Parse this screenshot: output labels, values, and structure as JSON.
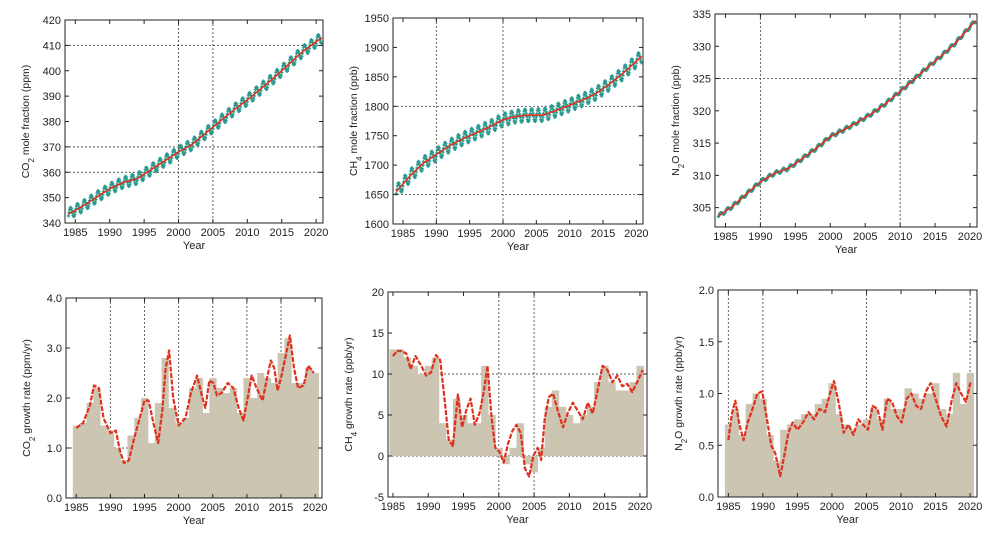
{
  "colors": {
    "co2_points": "#2a9a8f",
    "fit_line": "#e0301e",
    "bar_fill": "#cbc5b1",
    "axis": "#222222",
    "grid": "#555555"
  },
  "chart_data": [
    {
      "id": "co2_mole",
      "type": "scatter",
      "xlabel": "Year",
      "ylabel": "CO2 mole fraction (ppm)",
      "ylabel_parts": [
        "CO",
        "2",
        " mole fraction (ppm)"
      ],
      "xlim": [
        1983.5,
        2021
      ],
      "ylim": [
        340,
        420
      ],
      "xticks": [
        1985,
        1990,
        1995,
        2000,
        2005,
        2010,
        2015,
        2020
      ],
      "yticks": [
        340,
        350,
        360,
        370,
        380,
        390,
        400,
        410,
        420
      ],
      "vgrid": [
        2000,
        2005
      ],
      "hgrid": [
        360,
        370,
        410
      ],
      "seasonal_amplitude": 2.2,
      "series": [
        {
          "style": "points",
          "values": "monthly seasonal data"
        },
        {
          "style": "line",
          "x": [
            1984,
            1986,
            1988,
            1990,
            1992,
            1994,
            1996,
            1998,
            2000,
            2002,
            2004,
            2006,
            2008,
            2010,
            2012,
            2014,
            2016,
            2018,
            2020.8
          ],
          "y": [
            343.5,
            346.5,
            350,
            353.5,
            356,
            357.5,
            361,
            364.5,
            368,
            371,
            375.5,
            380,
            384.5,
            388.5,
            393,
            397.5,
            402.5,
            407.5,
            413
          ]
        }
      ]
    },
    {
      "id": "ch4_mole",
      "type": "scatter",
      "xlabel": "Year",
      "ylabel": "CH4 mole fraction (ppb)",
      "ylabel_parts": [
        "CH",
        "4",
        " mole fraction (ppb)"
      ],
      "xlim": [
        1983.5,
        2021
      ],
      "ylim": [
        1600,
        1950
      ],
      "xticks": [
        1985,
        1990,
        1995,
        2000,
        2005,
        2010,
        2015,
        2020
      ],
      "yticks": [
        1600,
        1650,
        1700,
        1750,
        1800,
        1850,
        1900,
        1950
      ],
      "vgrid": [
        1990,
        2000
      ],
      "hgrid": [
        1650,
        1800
      ],
      "seasonal_amplitude": 11,
      "series": [
        {
          "style": "points",
          "values": "monthly seasonal data"
        },
        {
          "style": "line",
          "x": [
            1984,
            1986,
            1988,
            1990,
            1992,
            1994,
            1996,
            1998,
            2000,
            2002,
            2004,
            2006,
            2008,
            2010,
            2012,
            2014,
            2016,
            2018,
            2020.8
          ],
          "y": [
            1655,
            1681,
            1703,
            1718,
            1733,
            1745,
            1755,
            1765,
            1777,
            1783,
            1785,
            1785,
            1793,
            1802,
            1811,
            1822,
            1838,
            1856,
            1885
          ]
        }
      ]
    },
    {
      "id": "n2o_mole",
      "type": "scatter",
      "xlabel": "Year",
      "ylabel": "N2O mole fraction (ppb)",
      "ylabel_parts": [
        "N",
        "2",
        "O mole fraction (ppb)"
      ],
      "xlim": [
        1983.5,
        2021
      ],
      "ylim": [
        302,
        335
      ],
      "xticks": [
        1985,
        1990,
        1995,
        2000,
        2005,
        2010,
        2015,
        2020
      ],
      "yticks": [
        305,
        310,
        315,
        320,
        325,
        330,
        335
      ],
      "vgrid": [
        1990,
        2010
      ],
      "hgrid": [
        325
      ],
      "seasonal_amplitude": 0.3,
      "series": [
        {
          "style": "points",
          "values": "monthly seasonal data"
        },
        {
          "style": "line",
          "x": [
            1984,
            1986,
            1988,
            1990,
            1992,
            1994,
            1996,
            1998,
            2000,
            2002,
            2004,
            2006,
            2008,
            2010,
            2012,
            2014,
            2016,
            2018,
            2020.8
          ],
          "y": [
            303.7,
            305.2,
            307.1,
            309,
            310.3,
            311.1,
            312.6,
            314.2,
            316,
            317.1,
            318.3,
            319.6,
            321.2,
            323,
            324.9,
            326.8,
            328.6,
            330.6,
            334
          ]
        }
      ]
    },
    {
      "id": "co2_growth",
      "type": "bar",
      "xlabel": "Year",
      "ylabel": "CO2 growth rate (ppm/yr)",
      "ylabel_parts": [
        "CO",
        "2",
        " growth rate (ppm/yr)"
      ],
      "xlim": [
        1983.5,
        2021
      ],
      "ylim": [
        0,
        4
      ],
      "xticks": [
        1985,
        1990,
        1995,
        2000,
        2005,
        2010,
        2015,
        2020
      ],
      "yticks": [
        0,
        1,
        2,
        3,
        4
      ],
      "ytick_labels": [
        "0.0",
        "1.0",
        "2.0",
        "3.0",
        "4.0"
      ],
      "vgrid": [
        1990,
        1995,
        2000,
        2005,
        2010,
        2015
      ],
      "hgrid": [
        1.0
      ],
      "years": [
        1985,
        1986,
        1987,
        1988,
        1989,
        1990,
        1991,
        1992,
        1993,
        1994,
        1995,
        1996,
        1997,
        1998,
        1999,
        2000,
        2001,
        2002,
        2003,
        2004,
        2005,
        2006,
        2007,
        2008,
        2009,
        2010,
        2011,
        2012,
        2013,
        2014,
        2015,
        2016,
        2017,
        2018,
        2019,
        2020
      ],
      "values": [
        1.45,
        1.5,
        1.9,
        2.2,
        1.45,
        1.35,
        1.0,
        0.75,
        1.25,
        1.6,
        2.0,
        1.1,
        1.9,
        2.8,
        1.8,
        1.5,
        1.6,
        2.2,
        2.4,
        1.7,
        2.4,
        2.2,
        2.1,
        2.2,
        1.7,
        2.4,
        2.0,
        2.5,
        2.4,
        2.3,
        2.9,
        3.2,
        2.3,
        2.3,
        2.6,
        2.5
      ],
      "smooth": {
        "x": [
          1985,
          1986,
          1987,
          1987.6,
          1988.3,
          1989,
          1990,
          1990.8,
          1991.4,
          1992,
          1992.7,
          1993.4,
          1994.3,
          1995,
          1995.6,
          1996.3,
          1997,
          1997.6,
          1998.1,
          1998.6,
          1999.2,
          2000,
          2001,
          2001.8,
          2002.7,
          2003.3,
          2003.9,
          2004.5,
          2005.1,
          2005.6,
          2006.3,
          2007.2,
          2008,
          2008.8,
          2009.5,
          2010.1,
          2010.7,
          2011.4,
          2012.3,
          2012.8,
          2013.5,
          2014,
          2014.5,
          2015,
          2015.7,
          2016.3,
          2016.9,
          2017.5,
          2018.3,
          2019,
          2019.8
        ],
        "y": [
          1.4,
          1.5,
          1.85,
          2.25,
          2.2,
          1.6,
          1.3,
          1.35,
          0.95,
          0.7,
          0.75,
          1.15,
          1.6,
          1.95,
          1.95,
          1.5,
          1.1,
          1.75,
          2.6,
          2.95,
          2.0,
          1.45,
          1.6,
          2.1,
          2.45,
          2.1,
          1.8,
          2.35,
          2.3,
          2.05,
          2.1,
          2.3,
          2.2,
          1.8,
          1.55,
          2.0,
          2.45,
          2.2,
          1.95,
          2.3,
          2.75,
          2.6,
          2.15,
          2.4,
          2.85,
          3.25,
          2.6,
          2.2,
          2.25,
          2.65,
          2.5
        ]
      }
    },
    {
      "id": "ch4_growth",
      "type": "bar",
      "xlabel": "Year",
      "ylabel": "CH4 growth rate (ppb/yr)",
      "ylabel_parts": [
        "CH",
        "4",
        " growth rate (ppb/yr)"
      ],
      "xlim": [
        1984.3,
        2021
      ],
      "ylim": [
        -5,
        20
      ],
      "xticks": [
        1985,
        1990,
        1995,
        2000,
        2005,
        2010,
        2015,
        2020
      ],
      "yticks": [
        -5,
        0,
        5,
        10,
        15,
        20
      ],
      "vgrid": [
        2000,
        2005
      ],
      "hgrid": [
        0,
        10
      ],
      "years": [
        1985,
        1986,
        1987,
        1988,
        1989,
        1990,
        1991,
        1992,
        1993,
        1994,
        1995,
        1996,
        1997,
        1998,
        1999,
        2000,
        2001,
        2002,
        2003,
        2004,
        2005,
        2006,
        2007,
        2008,
        2009,
        2010,
        2011,
        2012,
        2013,
        2014,
        2015,
        2016,
        2017,
        2018,
        2019,
        2020
      ],
      "values": [
        13,
        13,
        12,
        11,
        10,
        11,
        12,
        4,
        2,
        7,
        5,
        4,
        4,
        11,
        5,
        1,
        -1,
        1,
        4,
        -1,
        -2,
        1,
        6,
        8,
        6,
        5,
        4,
        5,
        6,
        9,
        11,
        9,
        8,
        8,
        9,
        11
      ],
      "smooth": {
        "x": [
          1985,
          1985.6,
          1986.2,
          1986.9,
          1987.5,
          1988.2,
          1989,
          1989.7,
          1990.4,
          1991.1,
          1991.7,
          1992.3,
          1992.9,
          1993.5,
          1994.2,
          1994.8,
          1995.4,
          1996,
          1996.6,
          1997.3,
          1997.9,
          1998.4,
          1999,
          1999.5,
          2000.1,
          2000.7,
          2001.3,
          2001.9,
          2002.5,
          2003.1,
          2003.7,
          2004.3,
          2004.9,
          2005.5,
          2006,
          2006.5,
          2007.1,
          2007.7,
          2008.4,
          2009.1,
          2009.8,
          2010.5,
          2011.2,
          2011.9,
          2012.6,
          2013.3,
          2014,
          2014.7,
          2015.4,
          2016.1,
          2016.8,
          2017.5,
          2018.2,
          2018.9,
          2019.6,
          2020.4
        ],
        "y": [
          12.2,
          12.8,
          12.8,
          12.5,
          10.6,
          12.2,
          11.0,
          9.8,
          10.2,
          12.3,
          11.7,
          7.0,
          2.0,
          1.2,
          7.5,
          3.5,
          5.6,
          7.0,
          3.8,
          5.3,
          8.0,
          11.0,
          4.5,
          1.0,
          0.5,
          -0.8,
          1.5,
          3.0,
          3.8,
          2.8,
          -1.5,
          -2.5,
          0.0,
          1.0,
          -0.5,
          4.5,
          7.2,
          7.6,
          5.4,
          3.5,
          5.3,
          6.5,
          5.5,
          4.5,
          6.5,
          5.2,
          8.0,
          11.0,
          10.5,
          9.0,
          9.8,
          8.5,
          8.8,
          7.8,
          9.0,
          10.5
        ]
      }
    },
    {
      "id": "n2o_growth",
      "type": "bar",
      "xlabel": "Year",
      "ylabel": "N2O growth rate (ppb/yr)",
      "ylabel_parts": [
        "N",
        "2",
        "O growth rate (ppb/yr)"
      ],
      "xlim": [
        1983.5,
        2021
      ],
      "ylim": [
        0,
        2
      ],
      "xticks": [
        1985,
        1990,
        1995,
        2000,
        2005,
        2010,
        2015,
        2020
      ],
      "yticks": [
        0,
        0.5,
        1,
        1.5,
        2
      ],
      "ytick_labels": [
        "0.0",
        "0.5",
        "1.0",
        "1.5",
        "2.0"
      ],
      "vgrid": [
        1985,
        1990,
        2005,
        2020
      ],
      "hgrid": [],
      "years": [
        1985,
        1986,
        1987,
        1988,
        1989,
        1990,
        1991,
        1992,
        1993,
        1994,
        1995,
        1996,
        1997,
        1998,
        1999,
        2000,
        2001,
        2002,
        2003,
        2004,
        2005,
        2006,
        2007,
        2008,
        2009,
        2010,
        2011,
        2012,
        2013,
        2014,
        2015,
        2016,
        2017,
        2018,
        2019,
        2020
      ],
      "values": [
        0.7,
        0.85,
        0.6,
        0.9,
        1.0,
        0.95,
        0.6,
        0.35,
        0.65,
        0.7,
        0.75,
        0.8,
        0.8,
        0.9,
        0.95,
        1.1,
        0.8,
        0.7,
        0.65,
        0.7,
        0.75,
        0.85,
        0.75,
        0.95,
        0.85,
        0.85,
        1.05,
        1.0,
        0.95,
        1.0,
        1.1,
        0.85,
        0.8,
        1.2,
        0.9,
        1.2
      ],
      "smooth": {
        "x": [
          1985,
          1985.5,
          1986,
          1986.6,
          1987.2,
          1987.8,
          1988.5,
          1989.2,
          1989.9,
          1990.6,
          1991.2,
          1991.8,
          1992.5,
          1993.1,
          1993.7,
          1994.3,
          1995,
          1995.8,
          1996.6,
          1997.4,
          1998.2,
          1999,
          1999.7,
          2000.3,
          2001,
          2001.7,
          2002.4,
          2003.1,
          2003.8,
          2004.5,
          2005.2,
          2005.9,
          2006.6,
          2007.3,
          2008,
          2008.7,
          2009.4,
          2010.1,
          2010.8,
          2011.5,
          2012.2,
          2012.9,
          2013.6,
          2014.3,
          2015,
          2015.8,
          2016.6,
          2017.3,
          2018,
          2018.7,
          2019.4,
          2020.1
        ],
        "y": [
          0.55,
          0.8,
          0.93,
          0.7,
          0.55,
          0.72,
          0.85,
          1.0,
          1.02,
          0.75,
          0.5,
          0.42,
          0.2,
          0.4,
          0.62,
          0.72,
          0.65,
          0.72,
          0.82,
          0.75,
          0.85,
          0.82,
          1.0,
          1.12,
          0.9,
          0.62,
          0.7,
          0.6,
          0.75,
          0.7,
          0.65,
          0.88,
          0.85,
          0.65,
          0.95,
          0.92,
          0.78,
          0.72,
          0.95,
          1.0,
          0.88,
          0.85,
          1.02,
          1.1,
          0.95,
          0.78,
          0.68,
          0.92,
          1.1,
          1.0,
          0.92,
          1.12
        ]
      }
    }
  ]
}
